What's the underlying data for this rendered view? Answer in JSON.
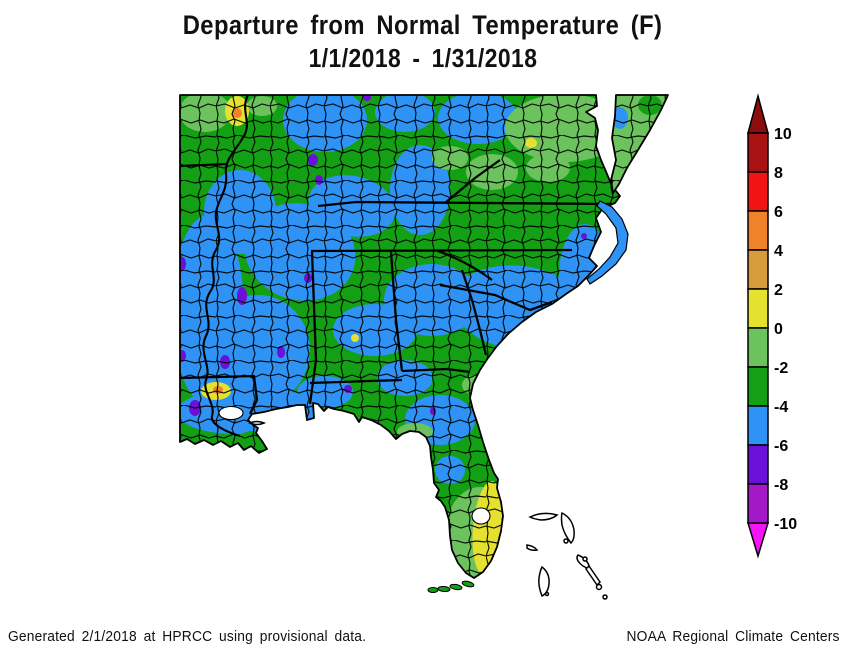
{
  "title": "Departure from Normal Temperature (F)",
  "subtitle": "1/1/2018 - 1/31/2018",
  "footer": {
    "left": "Generated 2/1/2018 at HPRCC using provisional data.",
    "right": "NOAA Regional Climate Centers"
  },
  "colorbar": {
    "tick_labels": [
      "10",
      "8",
      "6",
      "4",
      "2",
      "0",
      "-2",
      "-4",
      "-6",
      "-8",
      "-10"
    ],
    "segment_colors_top_to_bottom": [
      "#a81212",
      "#f21414",
      "#f0832a",
      "#d89b3c",
      "#e6e02e",
      "#6cc35e",
      "#14a014",
      "#2e93f5",
      "#6a10d8",
      "#a418c8"
    ],
    "arrow_top_color": "#8c0d0d",
    "arrow_bottom_color": "#f713f7"
  },
  "map": {
    "region_depicted": "Southeastern United States",
    "palette": {
      "green": "#14a014",
      "light_green": "#6cc35e",
      "blue": "#2e93f5",
      "yellow": "#e6e02e",
      "orange": "#f0832a",
      "violet": "#6a10d8",
      "purple": "#a418c8",
      "water": "#ffffff",
      "border": "#000000"
    }
  }
}
